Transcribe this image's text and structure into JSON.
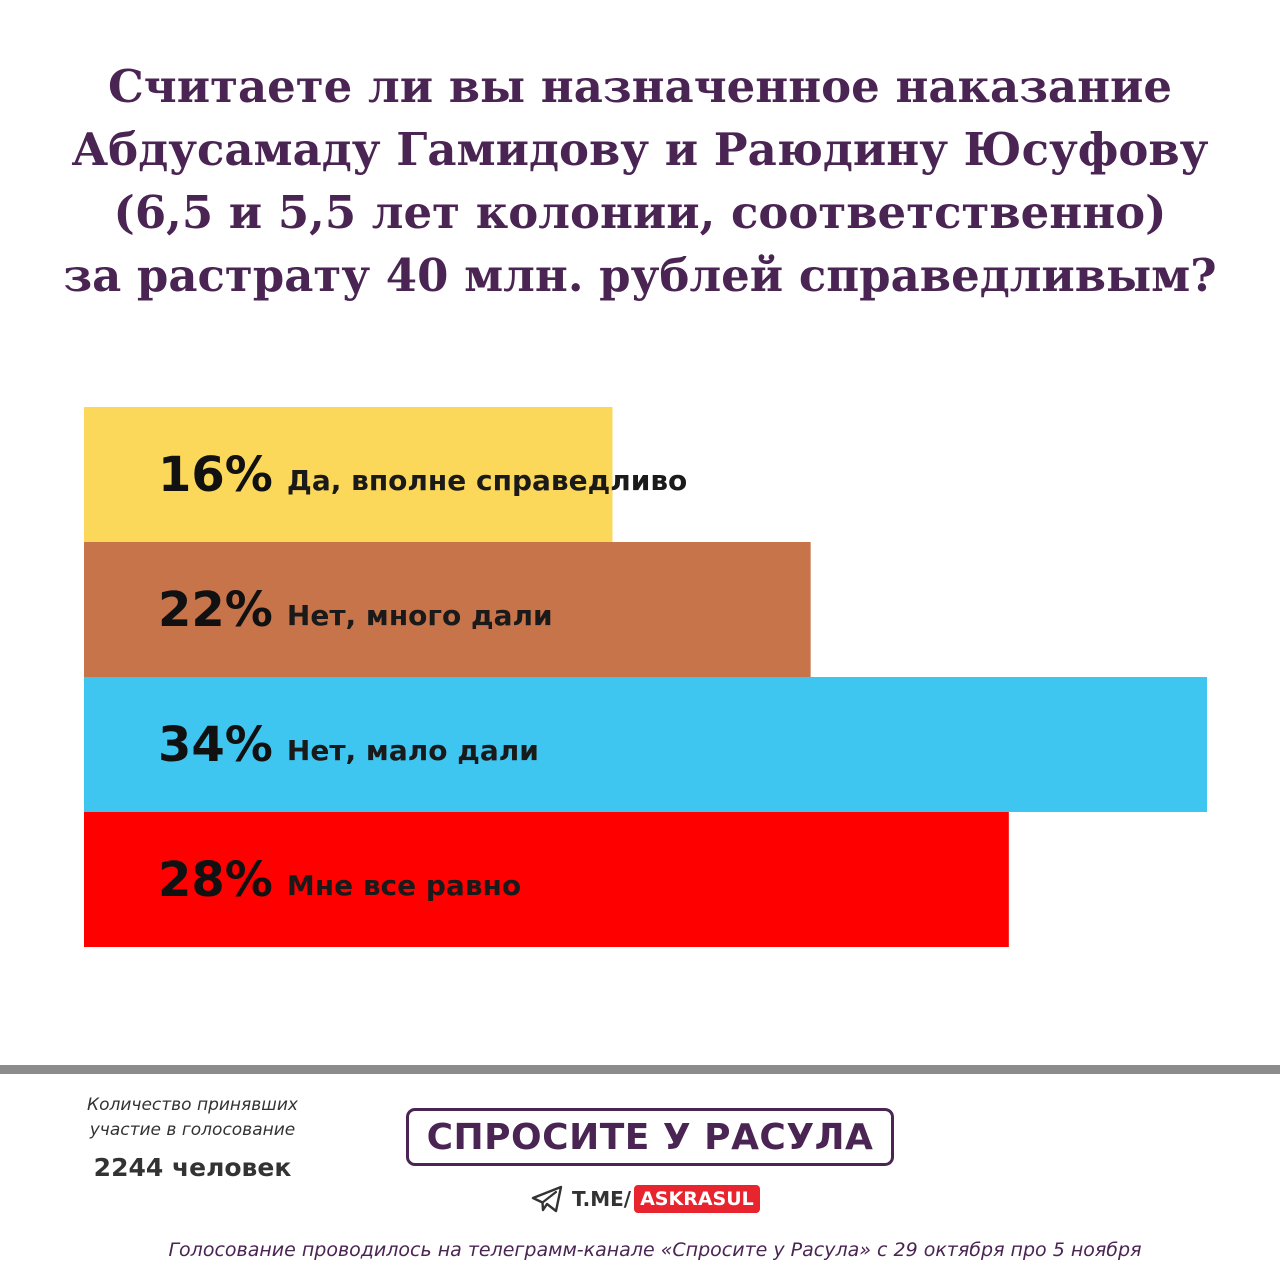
{
  "title_lines": [
    "Считаете ли вы назначенное наказание",
    "Абдусамаду Гамидову и Раюдину Юсуфову",
    "(6,5 и 5,5 лет колонии, соответственно)",
    "за растрату 40 млн. рублей справедливым?"
  ],
  "chart_data": {
    "type": "bar",
    "orientation": "horizontal",
    "categories": [
      "Да, вполне справедливо",
      "Нет, много дали",
      "Нет, мало дали",
      "Мне все равно"
    ],
    "values": [
      16,
      22,
      34,
      28
    ],
    "value_labels": [
      "16%",
      "22%",
      "34%",
      "28%"
    ],
    "unit": "%",
    "colors": [
      "#fbd85a",
      "#c8744a",
      "#3fc6f0",
      "#ff0000"
    ],
    "xlim": [
      0,
      34
    ],
    "grid": false,
    "legend": "none"
  },
  "participants": {
    "label": "Количество принявших участие в голосование",
    "count": "2244 человек"
  },
  "brand": {
    "logo_text": "СПРОСИТЕ У РАСУЛА",
    "channel_prefix": "T.ME/",
    "channel_handle": "ASKRASUL",
    "accent_color": "#4a2453",
    "handle_color": "#e8242f"
  },
  "footer_note": "Голосование проводилось на телеграмм-канале «Спросите у Расула» с 29 октября про 5 ноября"
}
